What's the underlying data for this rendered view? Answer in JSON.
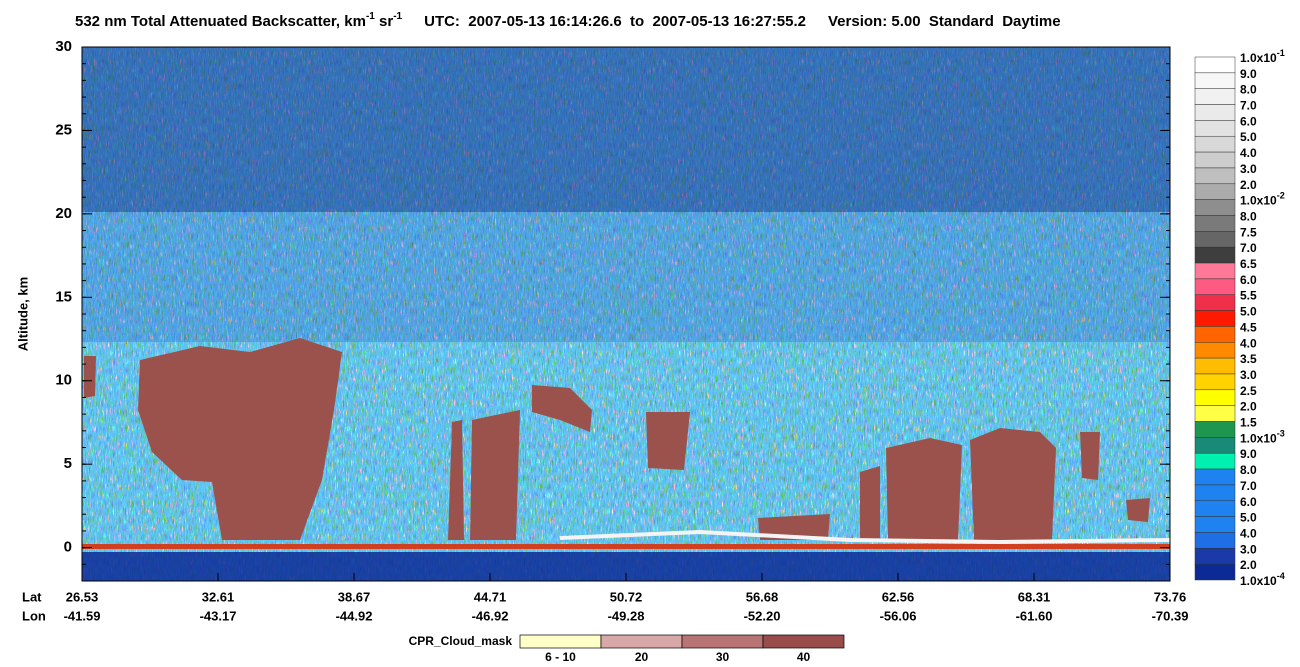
{
  "chart_data": {
    "type": "image",
    "title": {
      "main": "532 nm Total Attenuated Backscatter, km",
      "unit_exp": "-1",
      "unit2": " sr",
      "unit2_exp": "-1",
      "utc": "UTC:  2007-05-13 16:14:26.6  to  2007-05-13 16:27:55.2",
      "version": "Version: 5.00  Standard  Daytime"
    },
    "y_label": "Altitude, km",
    "ylim": [
      -2,
      30
    ],
    "yticks": [
      0,
      5,
      10,
      15,
      20,
      25,
      30
    ],
    "x_row_labels": [
      "Lat",
      "Lon"
    ],
    "lat": [
      "26.53",
      "32.61",
      "38.67",
      "44.71",
      "50.72",
      "56.68",
      "62.56",
      "68.31",
      "73.76"
    ],
    "lon": [
      "-41.59",
      "-43.17",
      "-44.92",
      "-46.92",
      "-49.28",
      "-52.20",
      "-56.06",
      "-61.60",
      "-70.39"
    ],
    "colorbar": {
      "labels": [
        "1.0x10",
        "9.0",
        "8.0",
        "7.0",
        "6.0",
        "5.0",
        "4.0",
        "3.0",
        "2.0",
        "1.0x10",
        "8.0",
        "7.5",
        "7.0",
        "6.5",
        "6.0",
        "5.5",
        "5.0",
        "4.5",
        "4.0",
        "3.5",
        "3.0",
        "2.5",
        "2.0",
        "1.5",
        "1.0x10",
        "9.0",
        "8.0",
        "7.0",
        "6.0",
        "5.0",
        "4.0",
        "3.0",
        "2.0",
        "1.0x10"
      ],
      "exponents": [
        "-1",
        null,
        null,
        null,
        null,
        null,
        null,
        null,
        null,
        "-2",
        null,
        null,
        null,
        null,
        null,
        null,
        null,
        null,
        null,
        null,
        null,
        null,
        null,
        null,
        "-3",
        null,
        null,
        null,
        null,
        null,
        null,
        null,
        null,
        "-4"
      ],
      "colors": [
        "#ffffff",
        "#f7f7f7",
        "#f1f1f1",
        "#eaeaea",
        "#e2e2e2",
        "#d8d8d8",
        "#cdcdcd",
        "#bfbfbf",
        "#ababab",
        "#8e8e8e",
        "#7a7a7a",
        "#666666",
        "#3e3e3e",
        "#ff7898",
        "#ff5a82",
        "#f0304a",
        "#ff1a00",
        "#ff6400",
        "#ff8a00",
        "#ffbc00",
        "#ffd200",
        "#ffff00",
        "#ffff46",
        "#1e9650",
        "#1a8a78",
        "#00f0b0",
        "#1e82f0",
        "#1e82f0",
        "#1e82f0",
        "#1e82f0",
        "#1e6ee6",
        "#1a3aa8",
        "#0c2a96"
      ]
    },
    "cpr_legend": {
      "title": "CPR_Cloud_mask",
      "labels": [
        "6 - 10",
        "20",
        "30",
        "40"
      ],
      "colors": [
        "#ffffc8",
        "#d8a8a8",
        "#b87474",
        "#9a4c4a"
      ]
    }
  }
}
